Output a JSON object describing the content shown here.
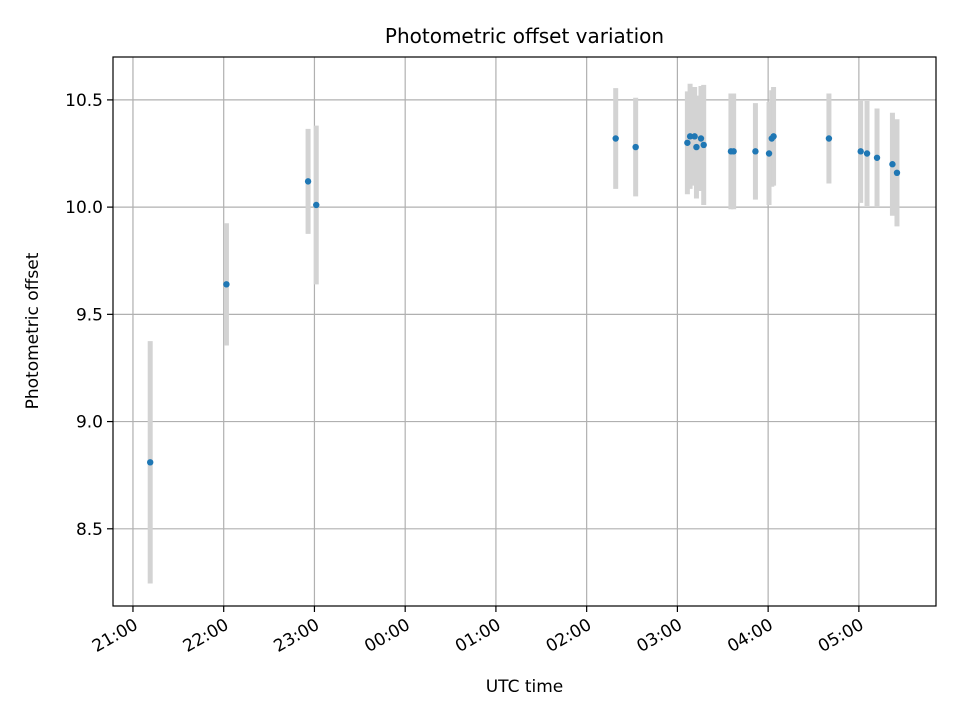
{
  "chart_data": {
    "type": "scatter",
    "title": "Photometric offset variation",
    "xlabel": "UTC time",
    "ylabel": "Photometric offset",
    "x_tick_labels": [
      "21:00",
      "22:00",
      "23:00",
      "00:00",
      "01:00",
      "02:00",
      "03:00",
      "04:00",
      "05:00"
    ],
    "y_tick_labels": [
      "8.5",
      "9.0",
      "9.5",
      "10.0",
      "10.5"
    ],
    "x_unit": "hours after 21:00 UTC",
    "xlim": [
      -0.22,
      8.85
    ],
    "ylim": [
      8.14,
      10.7
    ],
    "grid": true,
    "point_color": "#1f77b4",
    "errorbar_color": "#d3d3d3",
    "points": [
      {
        "x": 0.19,
        "y": 8.81,
        "err": 0.565
      },
      {
        "x": 1.03,
        "y": 9.64,
        "err": 0.285
      },
      {
        "x": 1.93,
        "y": 10.12,
        "err": 0.245
      },
      {
        "x": 2.02,
        "y": 10.01,
        "err": 0.37
      },
      {
        "x": 5.32,
        "y": 10.32,
        "err": 0.235
      },
      {
        "x": 5.54,
        "y": 10.28,
        "err": 0.23
      },
      {
        "x": 6.11,
        "y": 10.3,
        "err": 0.24
      },
      {
        "x": 6.14,
        "y": 10.33,
        "err": 0.245
      },
      {
        "x": 6.19,
        "y": 10.33,
        "err": 0.23
      },
      {
        "x": 6.21,
        "y": 10.28,
        "err": 0.24
      },
      {
        "x": 6.26,
        "y": 10.32,
        "err": 0.245
      },
      {
        "x": 6.29,
        "y": 10.29,
        "err": 0.28
      },
      {
        "x": 6.59,
        "y": 10.26,
        "err": 0.27
      },
      {
        "x": 6.62,
        "y": 10.26,
        "err": 0.27
      },
      {
        "x": 6.86,
        "y": 10.26,
        "err": 0.225
      },
      {
        "x": 7.01,
        "y": 10.25,
        "err": 0.24
      },
      {
        "x": 7.04,
        "y": 10.32,
        "err": 0.225
      },
      {
        "x": 7.06,
        "y": 10.33,
        "err": 0.23
      },
      {
        "x": 7.67,
        "y": 10.32,
        "err": 0.21
      },
      {
        "x": 8.02,
        "y": 10.26,
        "err": 0.24
      },
      {
        "x": 8.09,
        "y": 10.25,
        "err": 0.245
      },
      {
        "x": 8.2,
        "y": 10.23,
        "err": 0.23
      },
      {
        "x": 8.37,
        "y": 10.2,
        "err": 0.24
      },
      {
        "x": 8.42,
        "y": 10.16,
        "err": 0.25
      }
    ]
  }
}
